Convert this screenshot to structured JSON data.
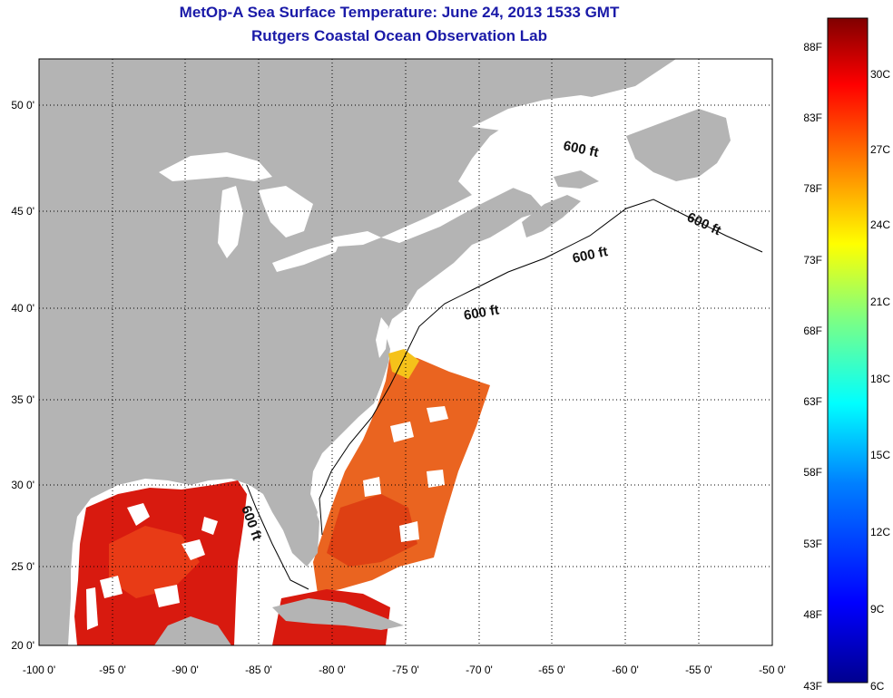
{
  "title": {
    "line1": "MetOp-A Sea Surface Temperature:  June 24, 2013 1533 GMT",
    "line2": "Rutgers Coastal Ocean Observation Lab"
  },
  "map": {
    "lon_range": [
      -100,
      -50
    ],
    "lat_range": [
      20,
      52.5
    ],
    "lon_ticks": [
      "-100 0'",
      "-95 0'",
      "-90 0'",
      "-85 0'",
      "-80 0'",
      "-75 0'",
      "-70 0'",
      "-65 0'",
      "-60 0'",
      "-55 0'",
      "-50 0'"
    ],
    "lat_ticks": [
      "20 0'",
      "25 0'",
      "30 0'",
      "35 0'",
      "40 0'",
      "45 0'",
      "50 0'"
    ],
    "depth_label": "600 ft",
    "land_color": "#b4b4b4",
    "water_color": "#ffffff"
  },
  "colorbar": {
    "fahrenheit": [
      "88F",
      "83F",
      "78F",
      "73F",
      "68F",
      "63F",
      "58F",
      "53F",
      "48F",
      "43F"
    ],
    "celsius": [
      "30C",
      "27C",
      "24C",
      "21C",
      "18C",
      "15C",
      "12C",
      "9C",
      "6C"
    ],
    "colors": [
      "#00008f",
      "#0000ff",
      "#0080ff",
      "#00ffff",
      "#80ff80",
      "#ffff00",
      "#ff8000",
      "#ff0000",
      "#800000"
    ]
  }
}
